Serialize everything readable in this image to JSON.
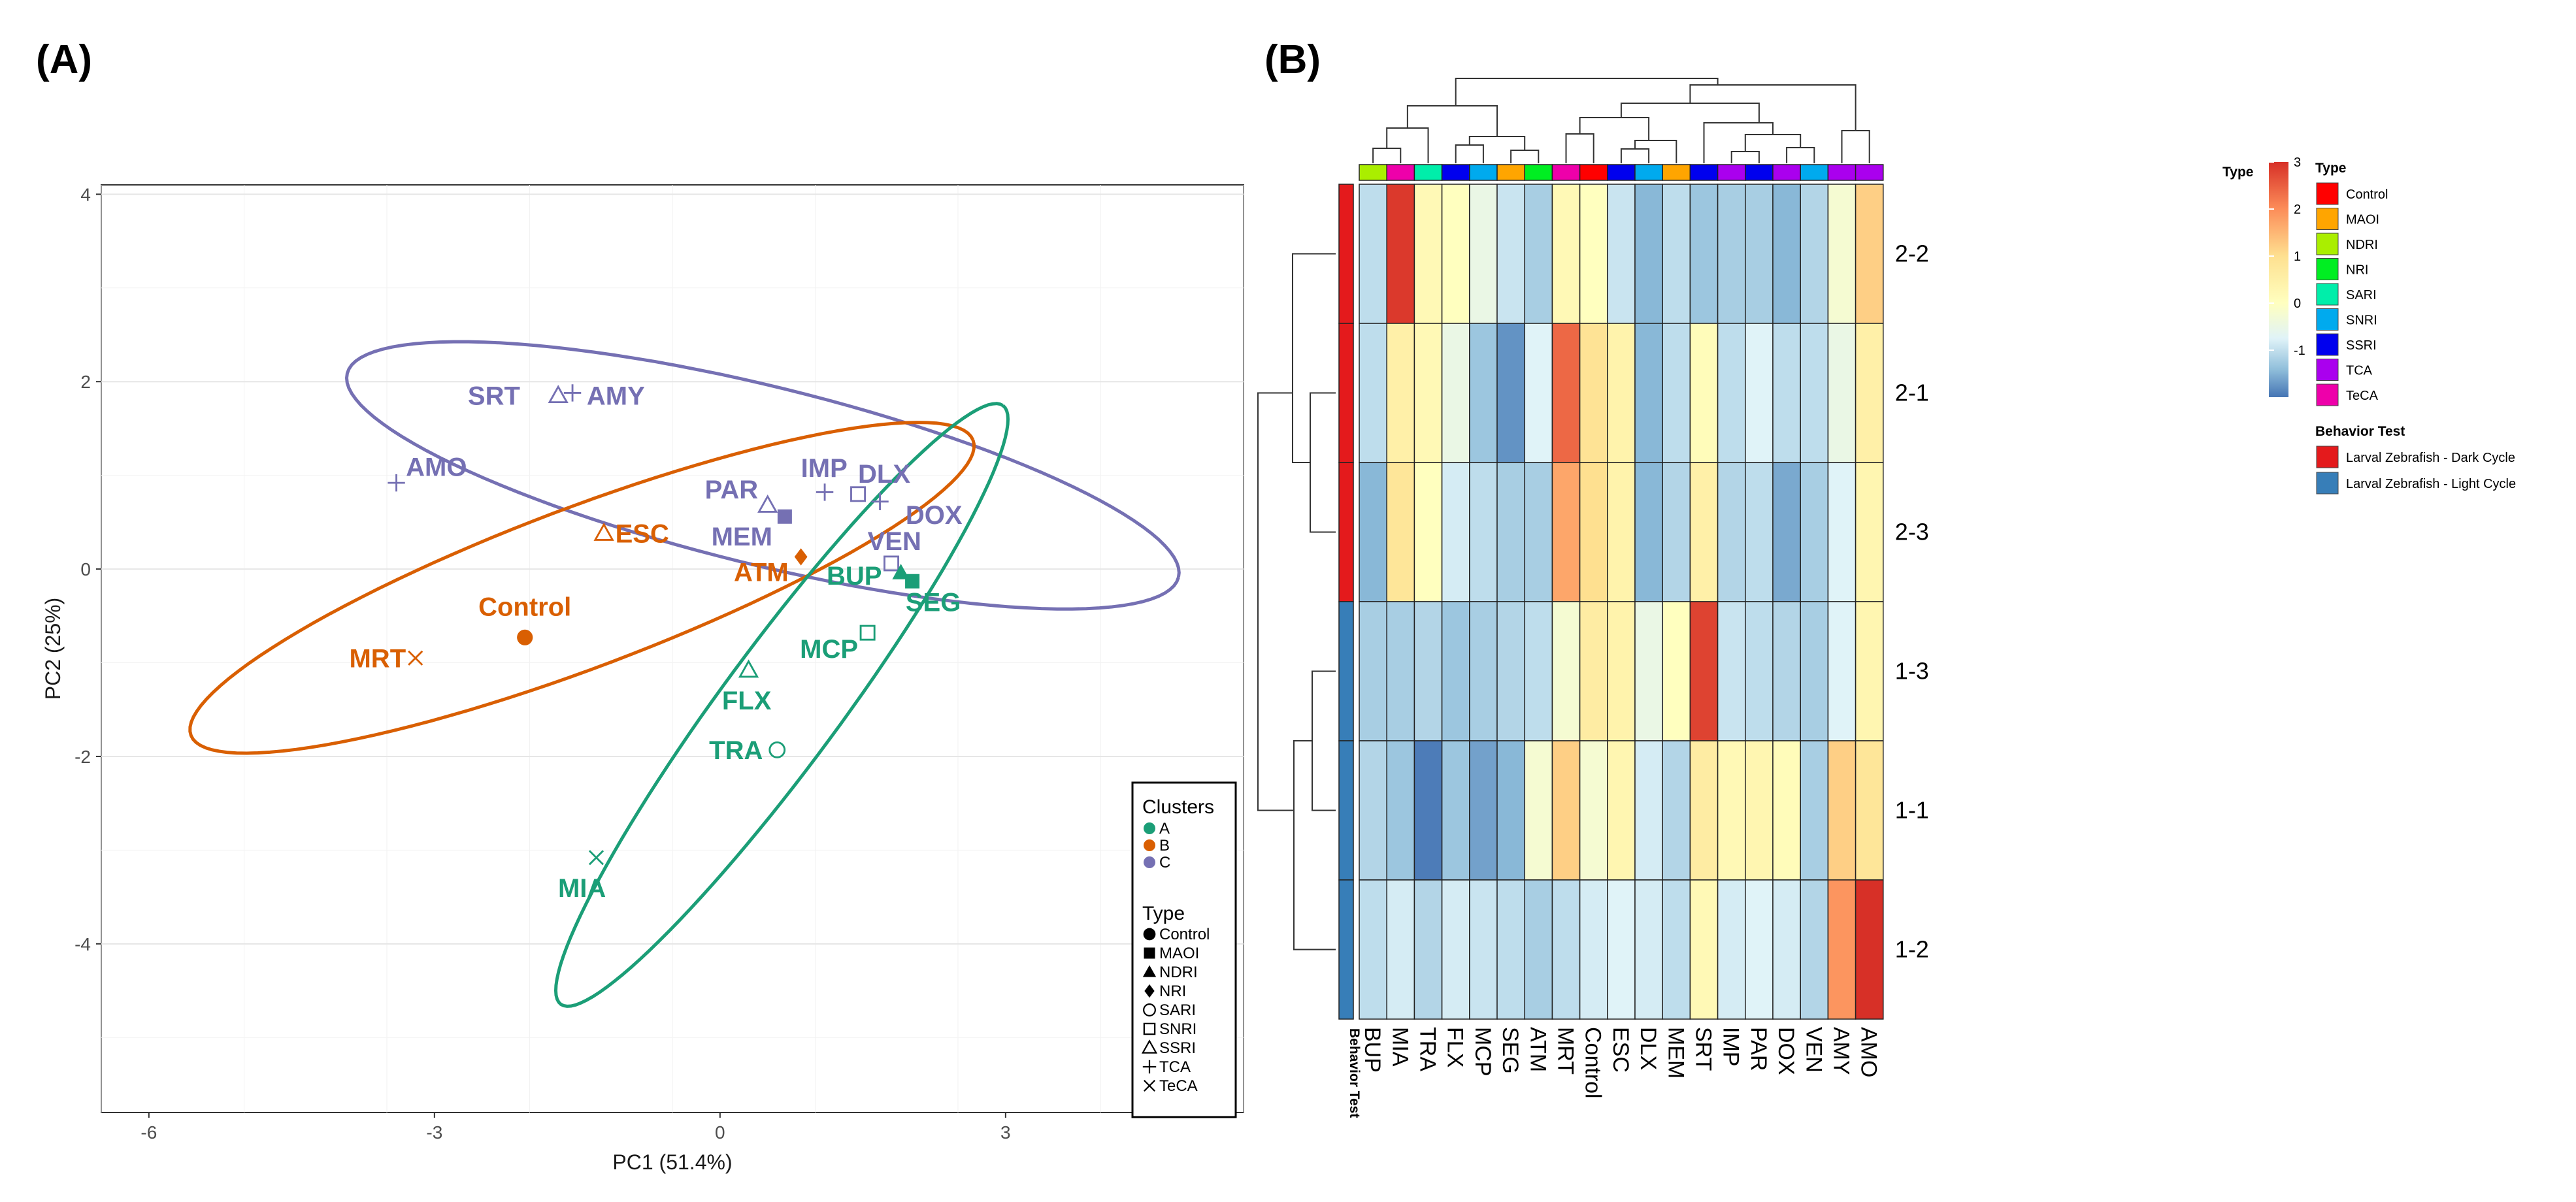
{
  "panel_a": {
    "label": "(A)",
    "chart_data": {
      "type": "scatter",
      "xlabel": "PC1 (51.4%)",
      "ylabel": "PC2 (25%)",
      "xlim": [
        -6.5,
        5.5
      ],
      "ylim": [
        -5.8,
        4.1
      ],
      "xticks": [
        -6,
        -3,
        0,
        3
      ],
      "yticks": [
        4,
        2,
        0,
        -2,
        -4
      ],
      "xtick_labels": [
        "-6",
        "-3",
        "0",
        "3"
      ],
      "ytick_labels": [
        "4",
        "2",
        "0",
        "-2",
        "-4"
      ],
      "cluster_colors": {
        "A": "#1b9e77",
        "B": "#d95f02",
        "C": "#7570b3"
      },
      "points": [
        {
          "label": "SRT",
          "x": -1.7,
          "y": 1.85,
          "cluster": "C",
          "shape": "SSRI",
          "lx": -2.1,
          "ly": 1.85,
          "anchor": "end"
        },
        {
          "label": "AMY",
          "x": -1.55,
          "y": 1.88,
          "cluster": "C",
          "shape": "TCA",
          "lx": -1.4,
          "ly": 1.85,
          "anchor": "start"
        },
        {
          "label": "AMO",
          "x": -3.4,
          "y": 0.92,
          "cluster": "C",
          "shape": "TCA",
          "lx": -3.3,
          "ly": 1.09,
          "anchor": "start"
        },
        {
          "label": "PAR",
          "x": 0.5,
          "y": 0.68,
          "cluster": "C",
          "shape": "SSRI",
          "lx": 0.4,
          "ly": 0.85,
          "anchor": "end"
        },
        {
          "label": "IMP",
          "x": 1.1,
          "y": 0.82,
          "cluster": "C",
          "shape": "TCA",
          "lx": 0.85,
          "ly": 1.08,
          "anchor": "start"
        },
        {
          "label": "DLX",
          "x": 1.45,
          "y": 0.8,
          "cluster": "C",
          "shape": "SNRI",
          "lx": 1.45,
          "ly": 1.02,
          "anchor": "start"
        },
        {
          "label": "DOX",
          "x": 1.68,
          "y": 0.72,
          "cluster": "C",
          "shape": "TCA",
          "lx": 1.95,
          "ly": 0.58,
          "anchor": "start"
        },
        {
          "label": "MEM",
          "x": 0.68,
          "y": 0.56,
          "cluster": "C",
          "shape": "MAOI",
          "lx": 0.55,
          "ly": 0.35,
          "anchor": "end"
        },
        {
          "label": "VEN",
          "x": 1.8,
          "y": 0.06,
          "cluster": "C",
          "shape": "SNRI",
          "lx": 1.55,
          "ly": 0.3,
          "anchor": "start"
        },
        {
          "label": "ESC",
          "x": -1.22,
          "y": 0.38,
          "cluster": "B",
          "shape": "SSRI",
          "lx": -1.1,
          "ly": 0.38,
          "anchor": "start"
        },
        {
          "label": "ATM",
          "x": 0.85,
          "y": 0.13,
          "cluster": "B",
          "shape": "NRI",
          "lx": 0.72,
          "ly": -0.03,
          "anchor": "end"
        },
        {
          "label": "Control",
          "x": -2.05,
          "y": -0.73,
          "cluster": "B",
          "shape": "Control",
          "lx": -2.05,
          "ly": -0.4,
          "anchor": "middle"
        },
        {
          "label": "MRT",
          "x": -3.2,
          "y": -0.95,
          "cluster": "B",
          "shape": "TeCA",
          "lx": -3.3,
          "ly": -0.95,
          "anchor": "end"
        },
        {
          "label": "BUP",
          "x": 1.9,
          "y": -0.04,
          "cluster": "A",
          "shape": "NDRI",
          "lx": 1.7,
          "ly": -0.07,
          "anchor": "end"
        },
        {
          "label": "SEG",
          "x": 2.02,
          "y": -0.13,
          "cluster": "A",
          "shape": "MAOI",
          "lx": 1.95,
          "ly": -0.35,
          "anchor": "start"
        },
        {
          "label": "MCP",
          "x": 1.55,
          "y": -0.68,
          "cluster": "A",
          "shape": "SNRI",
          "lx": 1.45,
          "ly": -0.85,
          "anchor": "end"
        },
        {
          "label": "FLX",
          "x": 0.3,
          "y": -1.08,
          "cluster": "A",
          "shape": "SSRI",
          "lx": 0.28,
          "ly": -1.4,
          "anchor": "middle"
        },
        {
          "label": "TRA",
          "x": 0.6,
          "y": -1.93,
          "cluster": "A",
          "shape": "SARI",
          "lx": 0.45,
          "ly": -1.93,
          "anchor": "end"
        },
        {
          "label": "MIA",
          "x": -1.3,
          "y": -3.08,
          "cluster": "A",
          "shape": "TeCA",
          "lx": -1.45,
          "ly": -3.4,
          "anchor": "middle"
        }
      ],
      "ellipses": [
        {
          "cluster": "C",
          "cx": 0.45,
          "cy": 1.0,
          "rx": 4.5,
          "ry": 0.95,
          "angle": -14
        },
        {
          "cluster": "B",
          "cx": -1.45,
          "cy": -0.2,
          "rx": 4.4,
          "ry": 0.85,
          "angle": 21
        },
        {
          "cluster": "A",
          "cx": 0.65,
          "cy": -1.45,
          "rx": 3.95,
          "ry": 0.62,
          "angle": 54
        }
      ],
      "legend": {
        "clusters_title": "Clusters",
        "clusters": [
          "A",
          "B",
          "C"
        ],
        "type_title": "Type",
        "types": [
          "Control",
          "MAOI",
          "NDRI",
          "NRI",
          "SARI",
          "SNRI",
          "SSRI",
          "TCA",
          "TeCA"
        ]
      }
    }
  },
  "panel_b": {
    "label": "(B)",
    "chart_data": {
      "type": "heatmap",
      "columns": [
        "BUP",
        "MIA",
        "TRA",
        "FLX",
        "MCP",
        "SEG",
        "ATM",
        "MRT",
        "Control",
        "ESC",
        "DLX",
        "MEM",
        "SRT",
        "IMP",
        "PAR",
        "DOX",
        "VEN",
        "AMY",
        "AMO"
      ],
      "column_types": [
        "NDRI",
        "TeCA",
        "SARI",
        "SSRI",
        "SNRI",
        "MAOI",
        "NRI",
        "TeCA",
        "Control",
        "SSRI",
        "SNRI",
        "MAOI",
        "SSRI",
        "TCA",
        "SSRI",
        "TCA",
        "SNRI",
        "TCA",
        "TCA"
      ],
      "rows": [
        "2-2",
        "2-1",
        "2-3",
        "1-3",
        "1-1",
        "1-2"
      ],
      "row_behavior": [
        "Larval Zebrafish - Dark Cycle",
        "Larval Zebrafish - Dark Cycle",
        "Larval Zebrafish - Dark Cycle",
        "Larval Zebrafish - Light Cycle",
        "Larval Zebrafish - Light Cycle",
        "Larval Zebrafish - Light Cycle"
      ],
      "values": [
        [
          -0.6,
          2.9,
          0.2,
          0.0,
          -0.2,
          -0.5,
          -0.8,
          0.2,
          0.0,
          -0.5,
          -1.1,
          -0.6,
          -0.9,
          -0.8,
          -0.8,
          -1.1,
          -0.7,
          -0.1,
          1.2
        ],
        [
          -0.6,
          0.5,
          0.2,
          -0.2,
          -0.9,
          -1.6,
          -0.3,
          2.4,
          0.9,
          0.4,
          -1.1,
          -0.6,
          0.1,
          -0.6,
          -0.3,
          -0.6,
          -0.6,
          -0.2,
          0.5
        ],
        [
          -1.1,
          0.8,
          0.0,
          -0.4,
          -0.6,
          -0.8,
          -0.8,
          1.7,
          1.0,
          0.4,
          -1.1,
          -0.7,
          0.5,
          -0.7,
          -0.6,
          -1.3,
          -0.8,
          -0.3,
          0.3
        ],
        [
          -0.8,
          -0.8,
          -0.7,
          -0.9,
          -0.8,
          -0.7,
          -0.6,
          -0.1,
          0.6,
          0.4,
          -0.2,
          0.0,
          2.8,
          -0.5,
          -0.6,
          -0.7,
          -0.8,
          -0.3,
          0.3
        ],
        [
          -0.7,
          -0.9,
          -1.9,
          -0.9,
          -1.4,
          -1.1,
          -0.1,
          1.2,
          -0.1,
          0.3,
          -0.4,
          -0.7,
          0.6,
          0.2,
          0.3,
          0.1,
          -0.8,
          1.2,
          0.8
        ],
        [
          -0.6,
          -0.4,
          -0.7,
          -0.4,
          -0.5,
          -0.6,
          -0.8,
          -0.6,
          -0.4,
          -0.3,
          -0.4,
          -0.6,
          0.2,
          -0.4,
          -0.3,
          -0.4,
          -0.7,
          1.9,
          3.0
        ]
      ],
      "color_scale": {
        "min": -2,
        "max": 3,
        "ticks": [
          "3",
          "2",
          "1",
          "0",
          "-1"
        ]
      },
      "type_track_label": "Type",
      "behavior_track_label": "Behavior Test",
      "type_colors": {
        "Control": "#ff0000",
        "MAOI": "#ffa500",
        "NDRI": "#aaee00",
        "NRI": "#00ee22",
        "SARI": "#00eeaa",
        "SNRI": "#00aaee",
        "SSRI": "#0000ee",
        "TCA": "#aa00ee",
        "TeCA": "#ee00aa"
      },
      "behavior_colors": {
        "Larval Zebrafish - Dark Cycle": "#e41a1c",
        "Larval Zebrafish - Light Cycle": "#377eb8"
      },
      "legend": {
        "type_title": "Type",
        "types": [
          "Control",
          "MAOI",
          "NDRI",
          "NRI",
          "SARI",
          "SNRI",
          "SSRI",
          "TCA",
          "TeCA"
        ],
        "behavior_title": "Behavior Test",
        "behaviors": [
          "Larval Zebrafish - Dark Cycle",
          "Larval Zebrafish - Light Cycle"
        ]
      }
    }
  }
}
